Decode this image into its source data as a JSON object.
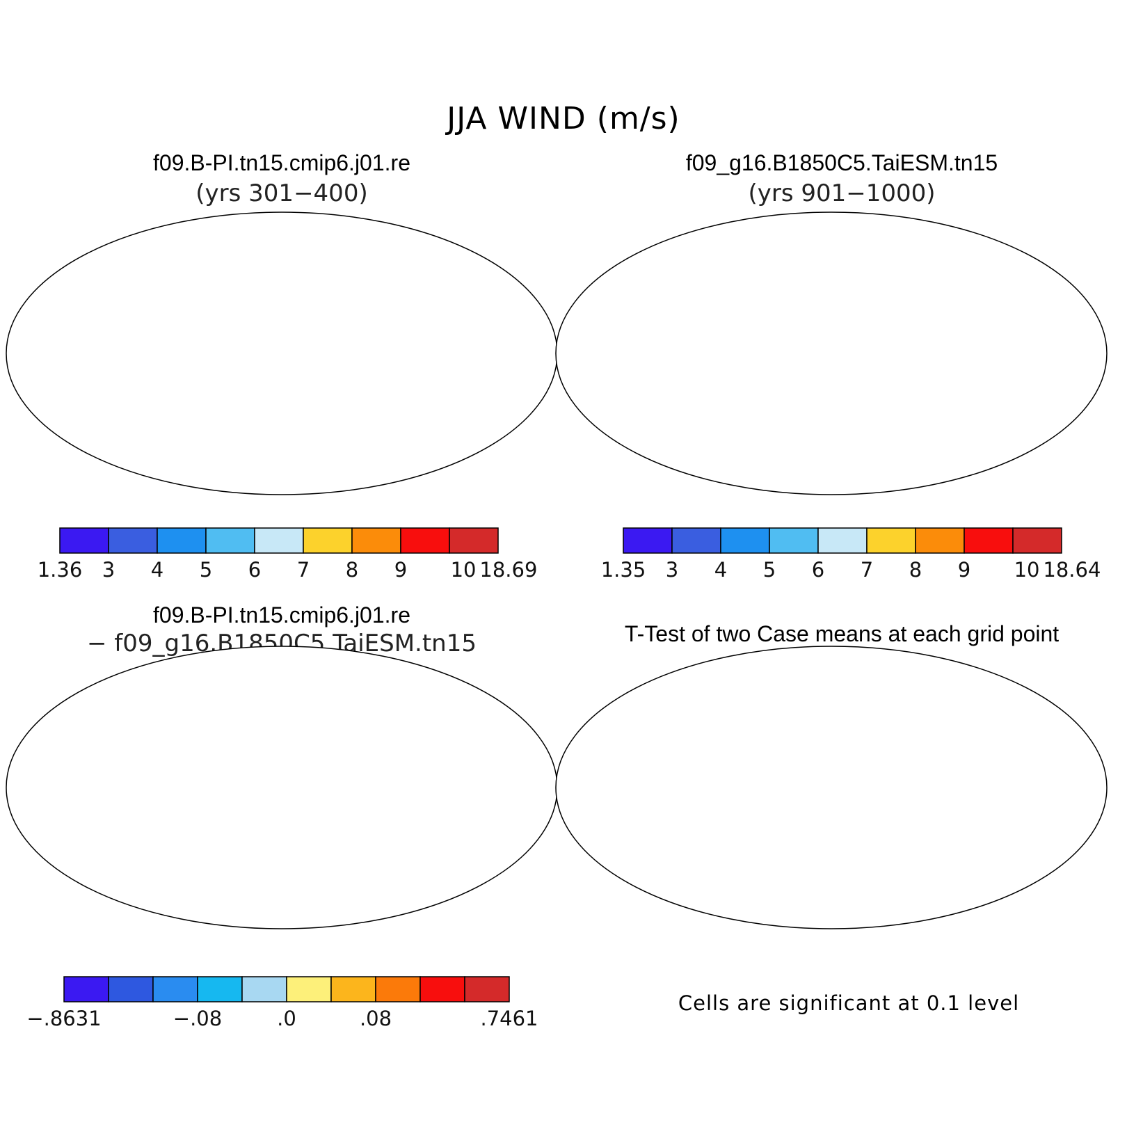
{
  "title": "JJA WIND (m/s)",
  "colors": {
    "wind_levels": [
      "#3b19f2",
      "#3a5ee0",
      "#1e90f0",
      "#50bdf2",
      "#c8e8f7",
      "#fcd22c",
      "#fb8c0a",
      "#f80e0d",
      "#d42a2a"
    ],
    "diff_levels": [
      "#3b19f2",
      "#2e58e0",
      "#2a8cf0",
      "#16b8f0",
      "#a8d8f2",
      "#fdf07a",
      "#fcb51c",
      "#fb7a0a",
      "#f80e0d",
      "#d42a2a"
    ],
    "significant": "#f80e0d",
    "coast": "#000000"
  },
  "panels": {
    "top_left": {
      "title": "f09.B-PI.tn15.cmip6.j01.re",
      "subtitle": "(yrs 301−400)",
      "colorbar_labels": [
        "1.36",
        "3",
        "4",
        "5",
        "6",
        "7",
        "8",
        "9",
        "10",
        "18.69"
      ]
    },
    "top_right": {
      "title": "f09_g16.B1850C5.TaiESM.tn15",
      "subtitle": "(yrs 901−1000)",
      "colorbar_labels": [
        "1.35",
        "3",
        "4",
        "5",
        "6",
        "7",
        "8",
        "9",
        "10",
        "18.64"
      ]
    },
    "bottom_left": {
      "title": "f09.B-PI.tn15.cmip6.j01.re",
      "subtitle": "− f09_g16.B1850C5.TaiESM.tn15",
      "colorbar_labels": [
        "−.8631",
        "−.08",
        ".0",
        ".08",
        ".7461"
      ]
    },
    "bottom_right": {
      "title": "T-Test of two Case means at each grid point",
      "note": "Cells are significant at 0.1 level"
    }
  }
}
